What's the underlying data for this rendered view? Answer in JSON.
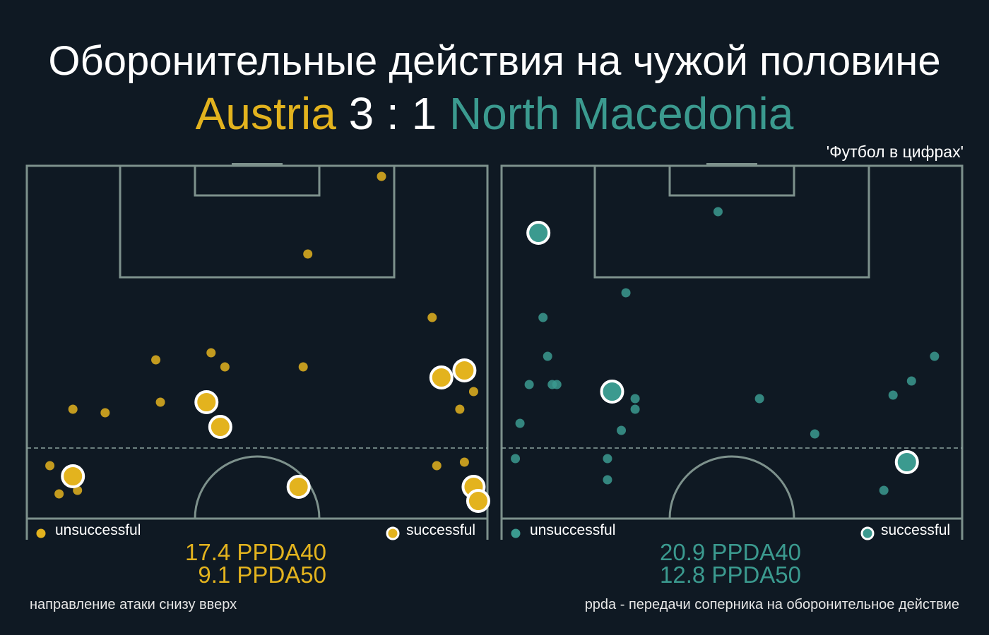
{
  "title": "Оборонительные действия на чужой половине",
  "match": {
    "home": "Austria",
    "score": "3 : 1",
    "away": "North Macedonia"
  },
  "source": "'Футбол в цифрах'",
  "colors": {
    "background": "#0f1923",
    "home": "#e3b31e",
    "away": "#3b9a8f",
    "lines": "#7d918c",
    "successful_ring": "#ffffff"
  },
  "legend": {
    "unsuccessful": "unsuccessful",
    "successful": "successful"
  },
  "panels": [
    {
      "team": "Austria",
      "color": "#e3b31e",
      "ppda40": "17.4 PPDA40",
      "ppda50": "9.1 PPDA50"
    },
    {
      "team": "North Macedonia",
      "color": "#3b9a8f",
      "ppda40": "20.9 PPDA40",
      "ppda50": "12.8 PPDA50"
    }
  ],
  "footnotes": {
    "left": "направление атаки снизу вверх",
    "right": "ppda - передачи соперника на оборонительное действие"
  },
  "chart_data": [
    {
      "type": "scatter",
      "series": [
        {
          "name": "unsuccessful",
          "points": [
            [
              0.77,
              0.03
            ],
            [
              0.61,
              0.25
            ],
            [
              0.88,
              0.43
            ],
            [
              0.28,
              0.55
            ],
            [
              0.4,
              0.53
            ],
            [
              0.43,
              0.57
            ],
            [
              0.6,
              0.57
            ],
            [
              0.1,
              0.69
            ],
            [
              0.17,
              0.7
            ],
            [
              0.29,
              0.67
            ],
            [
              0.97,
              0.64
            ],
            [
              0.94,
              0.69
            ],
            [
              0.05,
              0.85
            ],
            [
              0.07,
              0.93
            ],
            [
              0.11,
              0.92
            ],
            [
              0.89,
              0.85
            ],
            [
              0.95,
              0.84
            ]
          ]
        },
        {
          "name": "successful",
          "points": [
            [
              0.39,
              0.67
            ],
            [
              0.42,
              0.74
            ],
            [
              0.9,
              0.6
            ],
            [
              0.95,
              0.58
            ],
            [
              0.1,
              0.88
            ],
            [
              0.59,
              0.91
            ],
            [
              0.97,
              0.91
            ],
            [
              0.98,
              0.95
            ]
          ]
        }
      ]
    },
    {
      "type": "scatter",
      "series": [
        {
          "name": "unsuccessful",
          "points": [
            [
              0.47,
              0.13
            ],
            [
              0.27,
              0.36
            ],
            [
              0.09,
              0.43
            ],
            [
              0.1,
              0.54
            ],
            [
              0.06,
              0.62
            ],
            [
              0.11,
              0.62
            ],
            [
              0.12,
              0.62
            ],
            [
              0.29,
              0.66
            ],
            [
              0.29,
              0.69
            ],
            [
              0.56,
              0.66
            ],
            [
              0.04,
              0.73
            ],
            [
              0.26,
              0.75
            ],
            [
              0.68,
              0.76
            ],
            [
              0.85,
              0.65
            ],
            [
              0.89,
              0.61
            ],
            [
              0.94,
              0.54
            ],
            [
              0.03,
              0.83
            ],
            [
              0.23,
              0.89
            ],
            [
              0.23,
              0.83
            ],
            [
              0.83,
              0.92
            ]
          ]
        },
        {
          "name": "successful",
          "points": [
            [
              0.08,
              0.19
            ],
            [
              0.24,
              0.64
            ],
            [
              0.88,
              0.84
            ]
          ]
        }
      ]
    }
  ]
}
